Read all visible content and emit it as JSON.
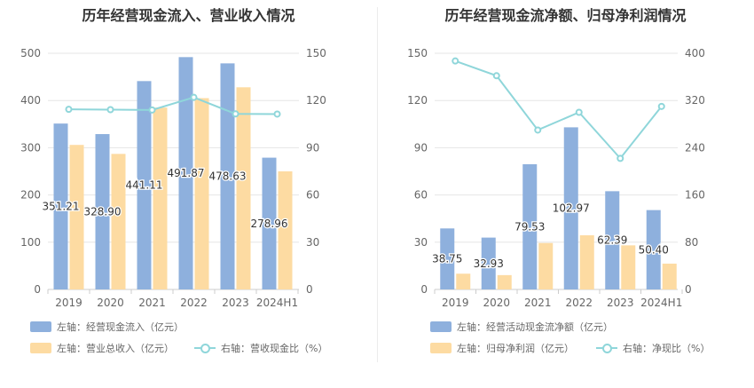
{
  "chart_data": [
    {
      "type": "bar",
      "title": "历年经营现金流入、营业收入情况",
      "categories": [
        "2019",
        "2020",
        "2021",
        "2022",
        "2023",
        "2024H1"
      ],
      "left_axis": {
        "ticks": [
          "0",
          "100",
          "200",
          "300",
          "400",
          "500"
        ],
        "ylim": [
          0,
          500
        ]
      },
      "right_axis": {
        "ticks": [
          "0",
          "30",
          "60",
          "90",
          "120",
          "150"
        ],
        "ylim": [
          0,
          150
        ]
      },
      "series": [
        {
          "name": "左轴：经营现金流入（亿元）",
          "axis": "left",
          "kind": "bar",
          "color": "#8eb0dd",
          "values": [
            351.21,
            328.9,
            441.11,
            491.87,
            478.63,
            278.96
          ],
          "labels": [
            "351.21",
            "328.90",
            "441.11",
            "491.87",
            "478.63",
            "278.96"
          ]
        },
        {
          "name": "左轴：营业总收入（亿元）",
          "axis": "left",
          "kind": "bar",
          "color": "#fddba2",
          "values": [
            306,
            287,
            385,
            405,
            428,
            250
          ]
        },
        {
          "name": "右轴：营收现金比（%）",
          "axis": "right",
          "kind": "line",
          "color": "#8fd6da",
          "values": [
            114.4,
            114.2,
            114.0,
            122.0,
            111.5,
            111.4
          ]
        }
      ]
    },
    {
      "type": "bar",
      "title": "历年经营现金流净额、归母净利润情况",
      "categories": [
        "2019",
        "2020",
        "2021",
        "2022",
        "2023",
        "2024H1"
      ],
      "left_axis": {
        "ticks": [
          "0",
          "30",
          "60",
          "90",
          "120",
          "150"
        ],
        "ylim": [
          0,
          150
        ]
      },
      "right_axis": {
        "ticks": [
          "0",
          "80",
          "160",
          "240",
          "320",
          "400"
        ],
        "ylim": [
          0,
          400
        ]
      },
      "series": [
        {
          "name": "左轴：经营活动现金流净额（亿元）",
          "axis": "left",
          "kind": "bar",
          "color": "#8eb0dd",
          "values": [
            38.75,
            32.93,
            79.53,
            102.97,
            62.39,
            50.4
          ],
          "labels": [
            "38.75",
            "32.93",
            "79.53",
            "102.97",
            "62.39",
            "50.40"
          ]
        },
        {
          "name": "左轴：归母净利润（亿元）",
          "axis": "left",
          "kind": "bar",
          "color": "#fddba2",
          "values": [
            10.0,
            9.1,
            29.5,
            34.4,
            28.0,
            16.4
          ]
        },
        {
          "name": "右轴：净现比（%）",
          "axis": "right",
          "kind": "line",
          "color": "#8fd6da",
          "values": [
            387,
            362,
            270,
            300,
            222,
            310
          ]
        }
      ]
    }
  ]
}
